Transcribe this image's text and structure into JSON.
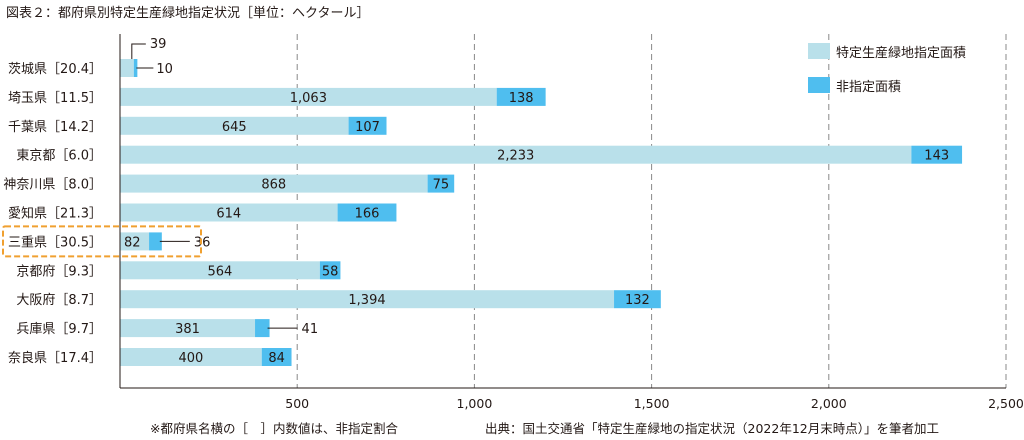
{
  "title": "図表２：都府県別特定生産緑地指定状況［単位：ヘクタール］",
  "footnote_left": "※都府県名横の［　］内数値は、非指定割合",
  "footnote_right": "出典：国土交通省「特定生産緑地の指定状況（2022年12月末時点）」を筆者加工",
  "colors": {
    "designated": "#b9e0ea",
    "non_designated": "#4fbeef",
    "highlight_border": "#f0a030",
    "axis": "#231815",
    "grid": "#888888"
  },
  "chart_data": {
    "type": "bar",
    "orientation": "horizontal",
    "stacked": true,
    "xlim": [
      0,
      2500
    ],
    "xticks": [
      500,
      1000,
      1500,
      2000,
      2500
    ],
    "xtick_labels": [
      "500",
      "1,000",
      "1,500",
      "2,000",
      "2,500"
    ],
    "grid": "vertical dashed",
    "legend_position": "top-right",
    "categories": [
      "茨城県［20.4］",
      "埼玉県［11.5］",
      "千葉県［14.2］",
      "東京都［6.0］",
      "神奈川県［8.0］",
      "愛知県［21.3］",
      "三重県［30.5］",
      "京都府［9.3］",
      "大阪府［8.7］",
      "兵庫県［9.7］",
      "奈良県［17.4］"
    ],
    "highlighted_category": "三重県［30.5］",
    "series": [
      {
        "name": "特定生産緑地指定面積",
        "values": [
          39,
          1063,
          645,
          2233,
          868,
          614,
          82,
          564,
          1394,
          381,
          400
        ],
        "labels": [
          "39",
          "1,063",
          "645",
          "2,233",
          "868",
          "614",
          "82",
          "564",
          "1,394",
          "381",
          "400"
        ]
      },
      {
        "name": "非指定面積",
        "values": [
          10,
          138,
          107,
          143,
          75,
          166,
          36,
          58,
          132,
          41,
          84
        ],
        "labels": [
          "10",
          "138",
          "107",
          "143",
          "75",
          "166",
          "36",
          "58",
          "132",
          "41",
          "84"
        ]
      }
    ]
  }
}
